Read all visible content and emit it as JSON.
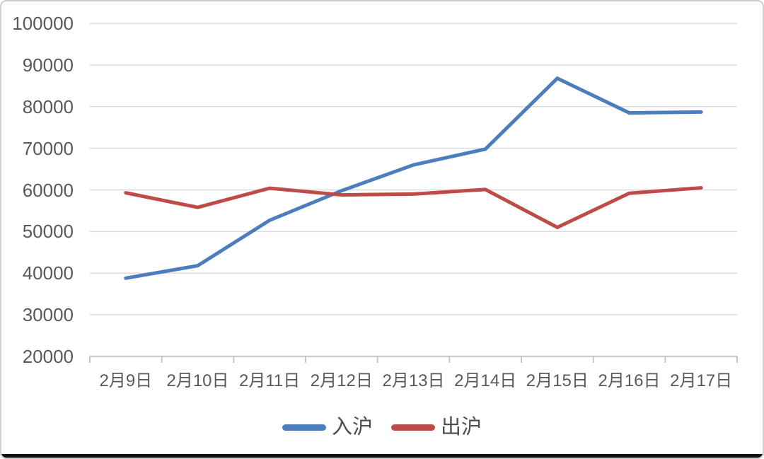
{
  "chart_data": {
    "type": "line",
    "categories": [
      "2月9日",
      "2月10日",
      "2月11日",
      "2月12日",
      "2月13日",
      "2月14日",
      "2月15日",
      "2月16日",
      "2月17日"
    ],
    "series": [
      {
        "name": "入沪",
        "color": "#4C7DBD",
        "values": [
          38800,
          41800,
          52700,
          59800,
          66000,
          69800,
          86800,
          78500,
          78700
        ]
      },
      {
        "name": "出沪",
        "color": "#BE4B48",
        "values": [
          59300,
          55800,
          60400,
          58800,
          59000,
          60100,
          51000,
          59200,
          60500
        ]
      }
    ],
    "title": "",
    "xlabel": "",
    "ylabel": "",
    "ylim": [
      20000,
      100000
    ],
    "ytick_step": 10000,
    "grid": true,
    "legend_position": "bottom"
  },
  "colors": {
    "gridline": "#dcdcdc",
    "axis": "#bfbfbf",
    "tick_text": "#595959",
    "legend_text": "#4d4d4d",
    "background": "#ffffff",
    "frame_border": "#cccccc",
    "bottom_edge": "#101010"
  }
}
